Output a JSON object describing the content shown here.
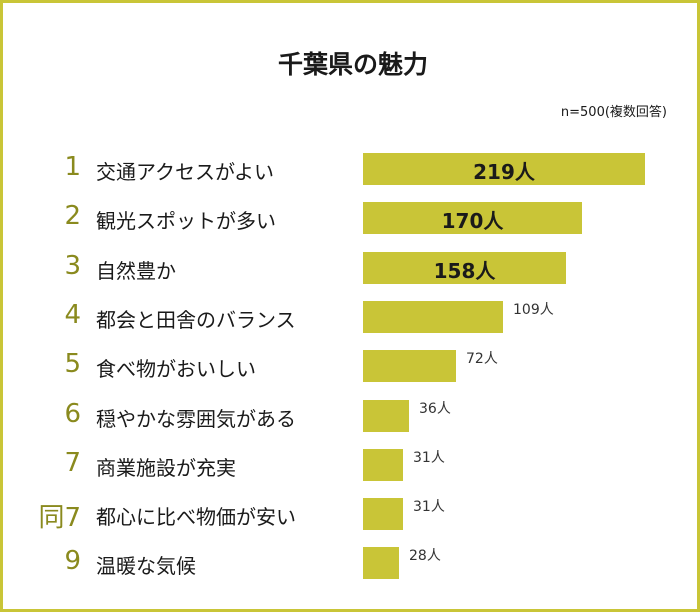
{
  "colors": {
    "bar": "#c9c537",
    "border": "#c9c537",
    "rank": "#8a8a1e"
  },
  "header": {
    "title": "千葉県の魅力",
    "note": "n=500(複数回答)"
  },
  "chart_data": {
    "type": "bar",
    "orientation": "horizontal",
    "title": "千葉県の魅力",
    "categories": [
      "交通アクセスがよい",
      "観光スポットが多い",
      "自然豊か",
      "都会と田舎のバランス",
      "食べ物がおいしい",
      "穏やかな雰囲気がある",
      "商業施設が充実",
      "都心に比べ物価が安い",
      "温暖な気候"
    ],
    "ranks": [
      "1",
      "2",
      "3",
      "4",
      "5",
      "6",
      "7",
      "同7",
      "9"
    ],
    "values": [
      219,
      170,
      158,
      109,
      72,
      36,
      31,
      31,
      28
    ],
    "value_labels": [
      "219人",
      "170人",
      "158人",
      "109人",
      "72人",
      "36人",
      "31人",
      "31人",
      "28人"
    ],
    "labels_inside_bar": [
      true,
      true,
      true,
      false,
      false,
      false,
      false,
      false,
      false
    ],
    "unit": "人",
    "xlim": [
      0,
      219
    ]
  }
}
